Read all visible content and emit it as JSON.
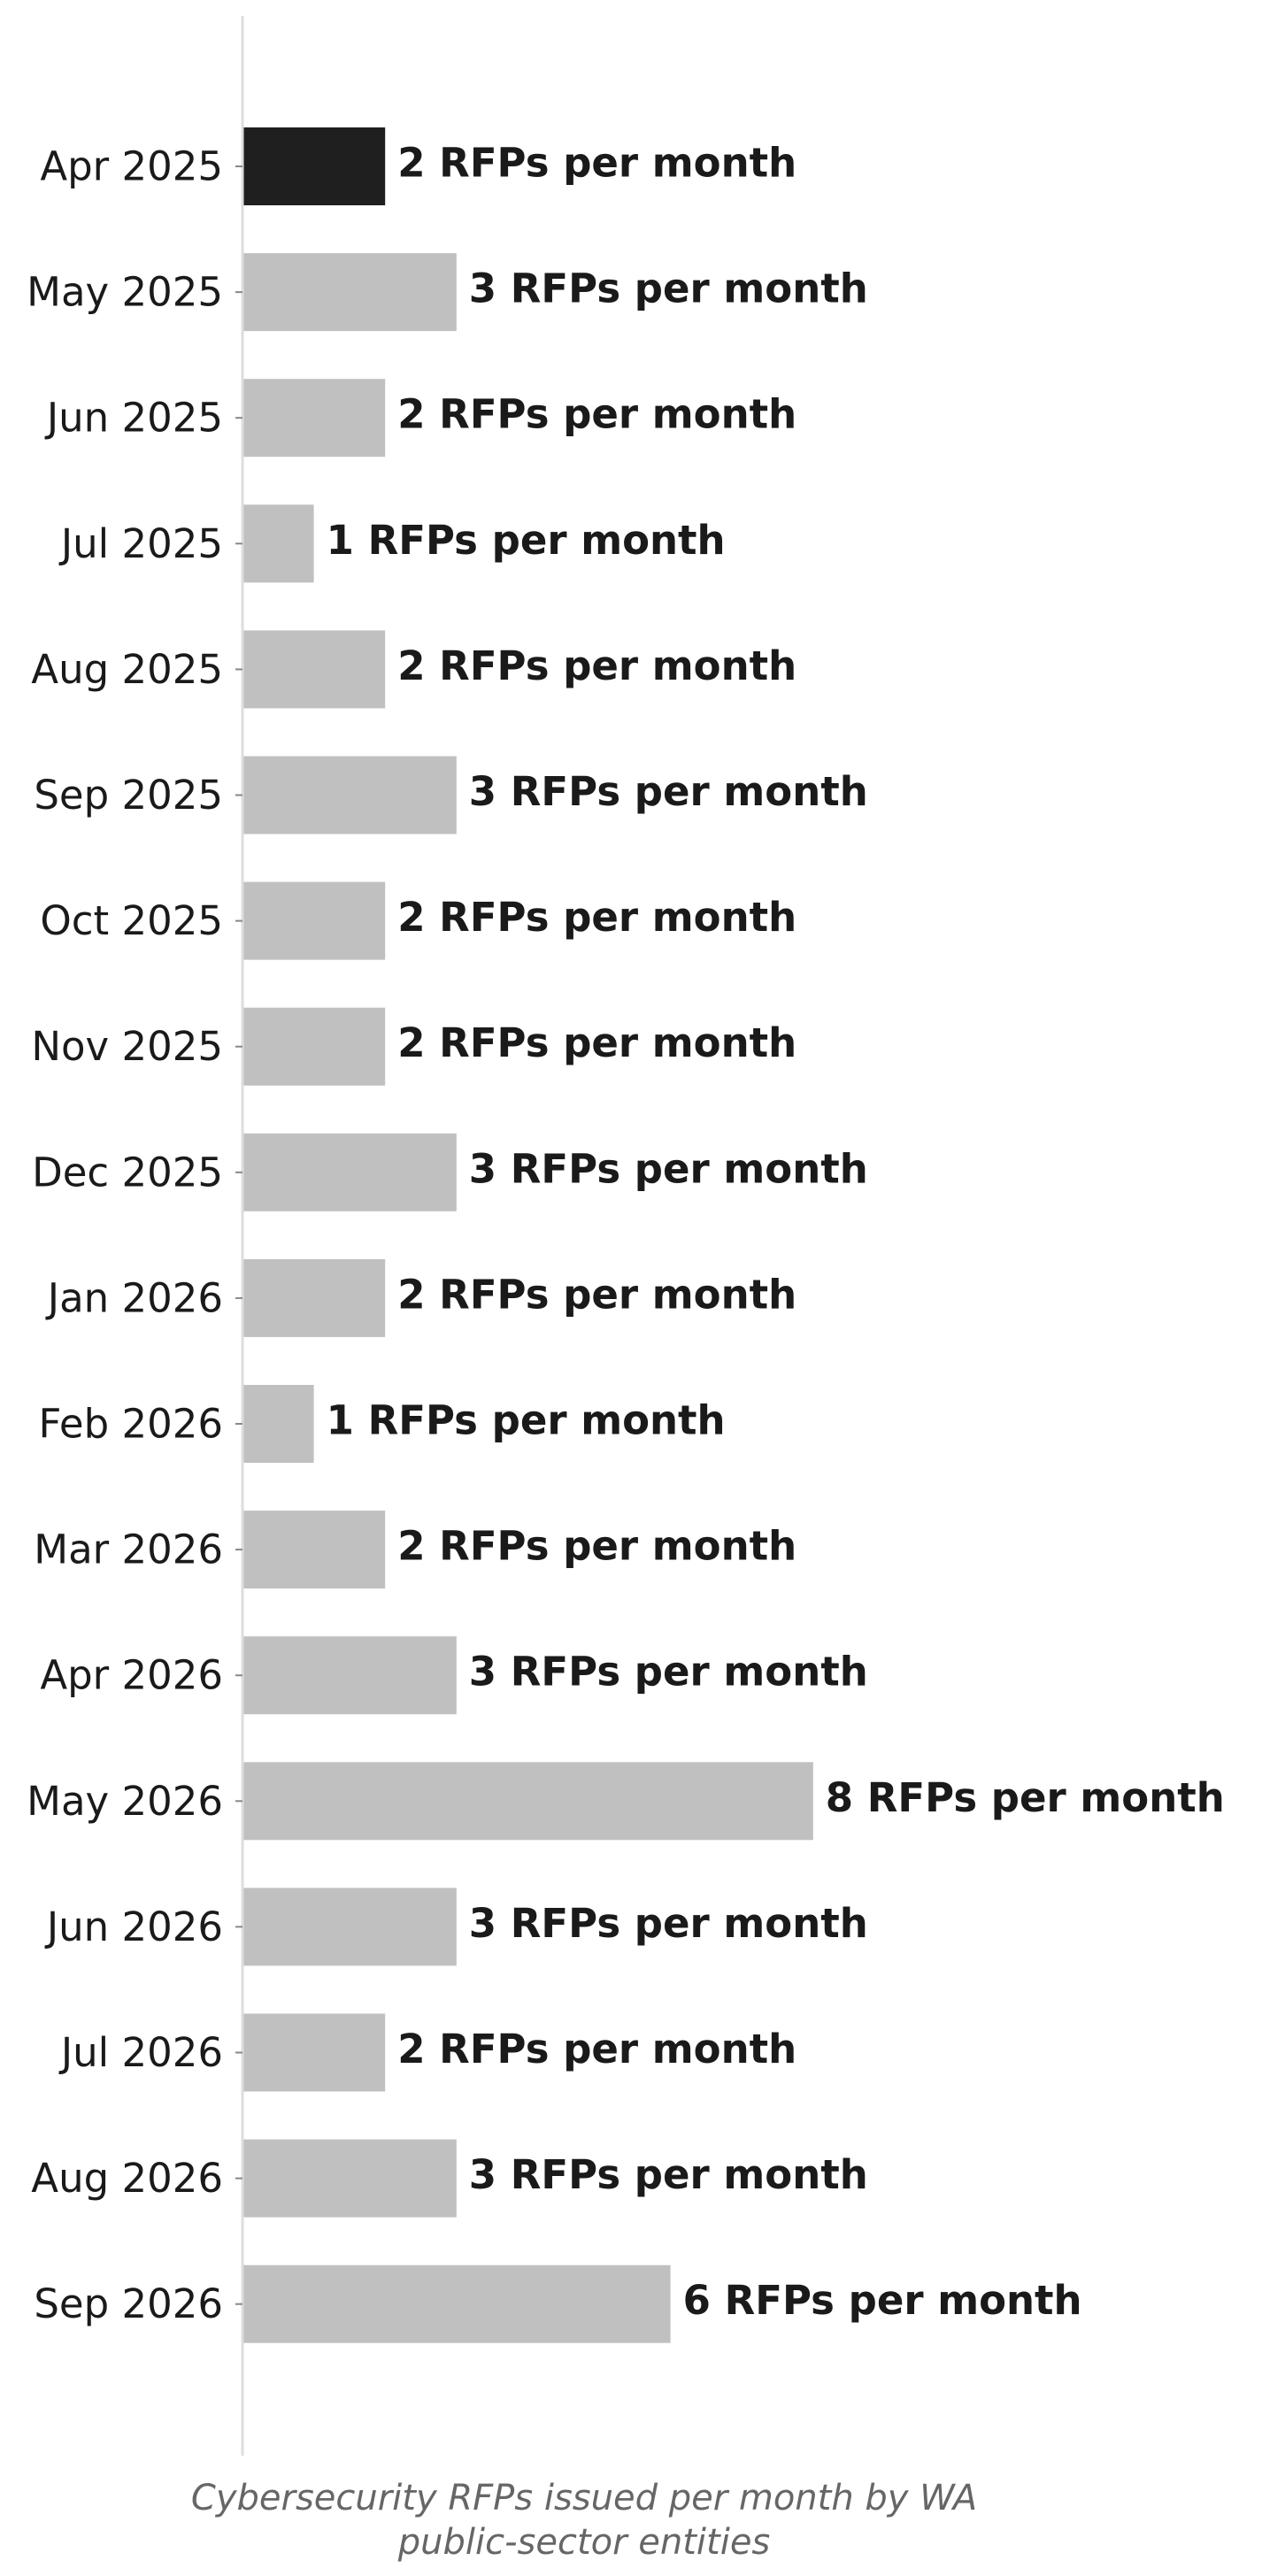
{
  "chart_data": {
    "type": "bar",
    "orientation": "horizontal",
    "title": "",
    "xlabel": "Cybersecurity RFPs issued per month by WA\npublic-sector entities",
    "ylabel": "",
    "categories": [
      "Apr 2025",
      "May 2025",
      "Jun 2025",
      "Jul 2025",
      "Aug 2025",
      "Sep 2025",
      "Oct 2025",
      "Nov 2025",
      "Dec 2025",
      "Jan 2026",
      "Feb 2026",
      "Mar 2026",
      "Apr 2026",
      "May 2026",
      "Jun 2026",
      "Jul 2026",
      "Aug 2026",
      "Sep 2026"
    ],
    "values": [
      2,
      3,
      2,
      1,
      2,
      3,
      2,
      2,
      3,
      2,
      1,
      2,
      3,
      8,
      3,
      2,
      3,
      6
    ],
    "value_labels": [
      "2 RFPs per month",
      "3 RFPs per month",
      "2 RFPs per month",
      "1 RFPs per month",
      "2 RFPs per month",
      "3 RFPs per month",
      "2 RFPs per month",
      "2 RFPs per month",
      "3 RFPs per month",
      "2 RFPs per month",
      "1 RFPs per month",
      "2 RFPs per month",
      "3 RFPs per month",
      "8 RFPs per month",
      "3 RFPs per month",
      "2 RFPs per month",
      "3 RFPs per month",
      "6 RFPs per month"
    ],
    "highlight_index": 0,
    "colors": {
      "highlight": "#1f1f1f",
      "bar": "#c0c0c0",
      "axis": "#dddddd",
      "text": "#1a1a1a",
      "caption": "#666666"
    },
    "xlim": [
      0,
      8
    ],
    "grid": false,
    "legend": "none"
  }
}
